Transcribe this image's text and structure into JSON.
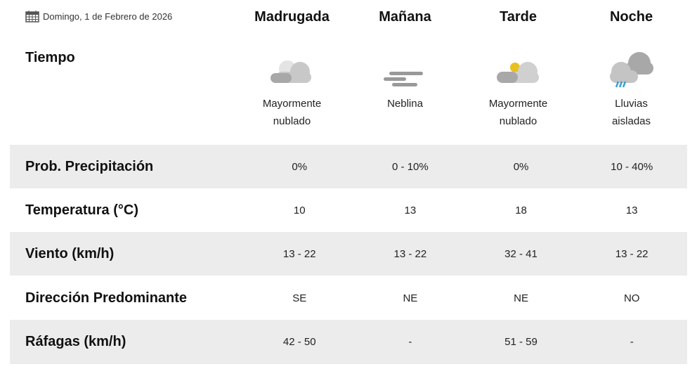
{
  "date": "Domingo, 1 de Febrero de 2026",
  "periods": [
    "Madrugada",
    "Mañana",
    "Tarde",
    "Noche"
  ],
  "weather_label": "Tiempo",
  "conditions": [
    {
      "line1": "Mayormente",
      "line2": "nublado",
      "icon": "partly-cloudy-night-icon"
    },
    {
      "line1": "Neblina",
      "line2": "",
      "icon": "fog-icon"
    },
    {
      "line1": "Mayormente",
      "line2": "nublado",
      "icon": "partly-cloudy-day-icon"
    },
    {
      "line1": "Lluvias",
      "line2": "aisladas",
      "icon": "rain-showers-icon"
    }
  ],
  "rows": [
    {
      "label": "Prob. Precipitación",
      "values": [
        "0%",
        "0 - 10%",
        "0%",
        "10 - 40%"
      ]
    },
    {
      "label": "Temperatura (°C)",
      "values": [
        "10",
        "13",
        "18",
        "13"
      ]
    },
    {
      "label": "Viento (km/h)",
      "values": [
        "13 - 22",
        "13 - 22",
        "32 - 41",
        "13 - 22"
      ]
    },
    {
      "label": "Dirección Predominante",
      "values": [
        "SE",
        "NE",
        "NE",
        "NO"
      ]
    },
    {
      "label": "Ráfagas (km/h)",
      "values": [
        "42 - 50",
        "-",
        "51 - 59",
        "-"
      ]
    }
  ]
}
